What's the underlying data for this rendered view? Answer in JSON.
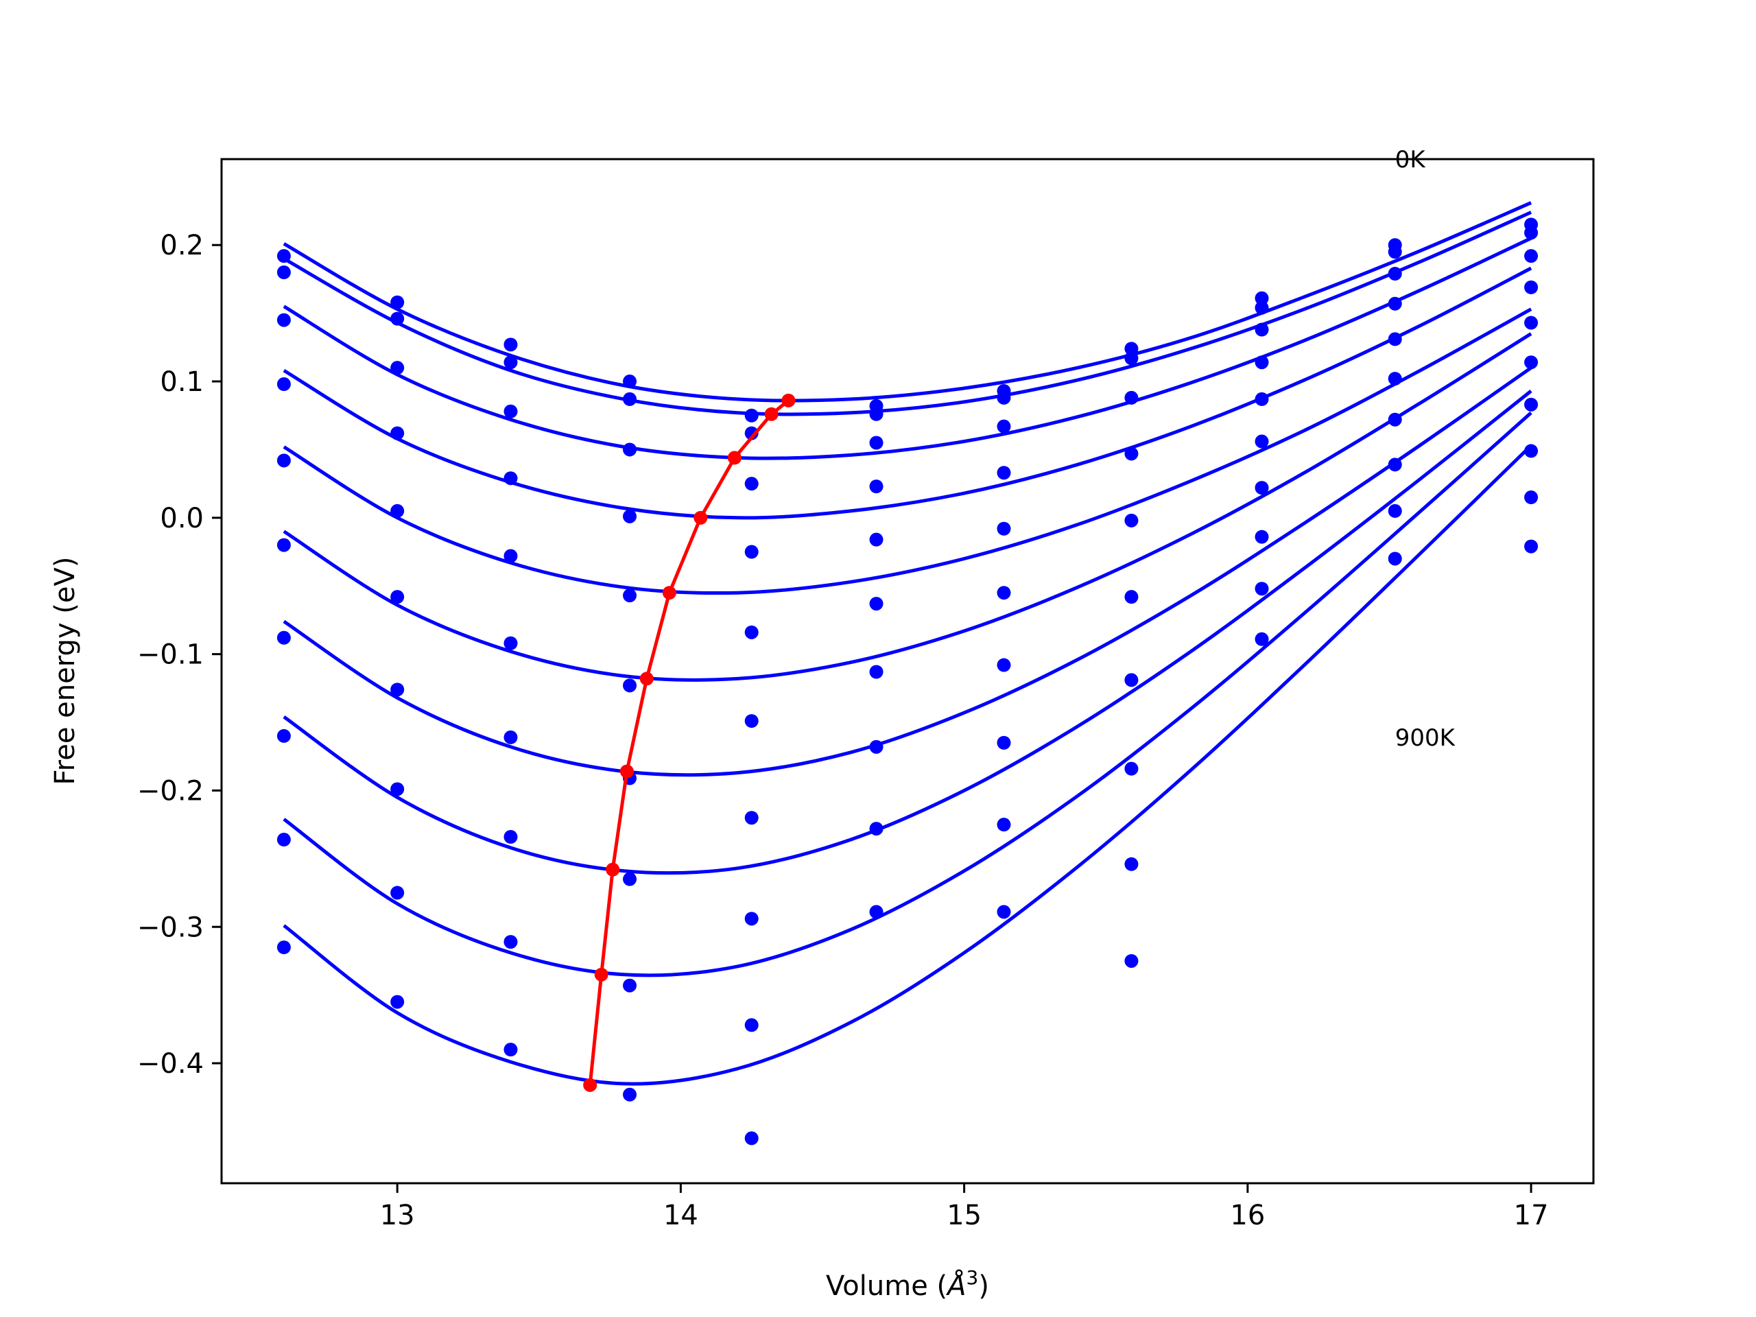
{
  "chart_data": {
    "type": "line",
    "title": "",
    "xlabel": "Volume (",
    "xlabel_unit": "Å",
    "xlabel_exp": "3",
    "xlabel_close": ")",
    "ylabel": "Free energy (eV)",
    "xlim": [
      12.38,
      17.22
    ],
    "ylim": [
      -0.488,
      0.263
    ],
    "xticks": [
      13,
      14,
      15,
      16,
      17
    ],
    "xtick_labels": [
      "13",
      "14",
      "15",
      "16",
      "17"
    ],
    "yticks": [
      0.2,
      0.1,
      0.0,
      -0.1,
      -0.2,
      -0.3,
      -0.4
    ],
    "ytick_labels": [
      "0.2",
      "0.1",
      "0.0",
      "−0.1",
      "−0.2",
      "−0.3",
      "−0.4"
    ],
    "grid": false,
    "annotations": [
      {
        "text": "0K",
        "x": 16.52,
        "y": 0.257
      },
      {
        "text": "900K",
        "x": 16.52,
        "y": -0.167
      }
    ],
    "colors": {
      "points": "#0000ff",
      "fits": "#0000ff",
      "minimum_path": "#ff0000"
    },
    "x_points": [
      12.6,
      13.0,
      13.4,
      13.82,
      14.25,
      14.69,
      15.14,
      15.59,
      16.05,
      16.52,
      17.0
    ],
    "series": [
      {
        "points": [
          0.192,
          0.158,
          0.127,
          0.1,
          0.075,
          0.082,
          0.093,
          0.124,
          0.161,
          0.2,
          0.215
        ],
        "fit": [
          [
            12.6,
            0.201
          ],
          [
            13.0,
            0.153
          ],
          [
            13.4,
            0.119
          ],
          [
            13.8,
            0.097
          ],
          [
            14.2,
            0.087
          ],
          [
            14.6,
            0.087
          ],
          [
            15.0,
            0.095
          ],
          [
            15.4,
            0.11
          ],
          [
            15.8,
            0.132
          ],
          [
            16.2,
            0.162
          ],
          [
            16.6,
            0.195
          ],
          [
            17.0,
            0.231
          ]
        ]
      },
      {
        "points": [
          0.18,
          0.146,
          0.114,
          0.087,
          0.062,
          0.076,
          0.088,
          0.117,
          0.154,
          0.195,
          0.209
        ],
        "fit": [
          [
            12.6,
            0.19
          ],
          [
            13.0,
            0.143
          ],
          [
            13.4,
            0.108
          ],
          [
            13.8,
            0.087
          ],
          [
            14.2,
            0.077
          ],
          [
            14.6,
            0.077
          ],
          [
            15.0,
            0.085
          ],
          [
            15.4,
            0.101
          ],
          [
            15.8,
            0.124
          ],
          [
            16.2,
            0.153
          ],
          [
            16.6,
            0.187
          ],
          [
            17.0,
            0.224
          ]
        ]
      },
      {
        "points": [
          0.145,
          0.11,
          0.078,
          0.05,
          0.025,
          0.055,
          0.067,
          0.088,
          0.138,
          0.179,
          0.192
        ],
        "fit": [
          [
            12.6,
            0.155
          ],
          [
            13.0,
            0.105
          ],
          [
            13.4,
            0.072
          ],
          [
            13.8,
            0.052
          ],
          [
            14.2,
            0.044
          ],
          [
            14.6,
            0.046
          ],
          [
            15.0,
            0.056
          ],
          [
            15.4,
            0.074
          ],
          [
            15.8,
            0.099
          ],
          [
            16.2,
            0.13
          ],
          [
            16.6,
            0.166
          ],
          [
            17.0,
            0.205
          ]
        ]
      },
      {
        "points": [
          0.098,
          0.062,
          0.029,
          0.001,
          -0.025,
          0.023,
          0.033,
          0.047,
          0.114,
          0.157,
          0.169
        ],
        "fit": [
          [
            12.6,
            0.108
          ],
          [
            13.0,
            0.058
          ],
          [
            13.4,
            0.026
          ],
          [
            13.8,
            0.007
          ],
          [
            14.2,
            0.0
          ],
          [
            14.6,
            0.005
          ],
          [
            15.0,
            0.018
          ],
          [
            15.4,
            0.039
          ],
          [
            15.8,
            0.067
          ],
          [
            16.2,
            0.101
          ],
          [
            16.6,
            0.14
          ],
          [
            17.0,
            0.183
          ]
        ]
      },
      {
        "points": [
          0.042,
          0.005,
          -0.028,
          -0.057,
          -0.084,
          -0.016,
          -0.008,
          -0.002,
          0.087,
          0.131,
          0.143
        ],
        "fit": [
          [
            12.6,
            0.052
          ],
          [
            13.0,
            0.0
          ],
          [
            13.4,
            -0.033
          ],
          [
            13.8,
            -0.051
          ],
          [
            14.2,
            -0.055
          ],
          [
            14.6,
            -0.047
          ],
          [
            15.0,
            -0.03
          ],
          [
            15.4,
            -0.005
          ],
          [
            15.8,
            0.027
          ],
          [
            16.2,
            0.064
          ],
          [
            16.6,
            0.107
          ],
          [
            17.0,
            0.153
          ]
        ]
      },
      {
        "points": [
          -0.02,
          -0.058,
          -0.092,
          -0.123,
          -0.149,
          -0.063,
          -0.055,
          -0.058,
          0.056,
          0.102,
          0.114
        ],
        "fit": [
          [
            12.6,
            -0.01
          ],
          [
            13.0,
            -0.064
          ],
          [
            13.4,
            -0.098
          ],
          [
            13.8,
            -0.116
          ],
          [
            14.2,
            -0.118
          ],
          [
            14.6,
            -0.106
          ],
          [
            15.0,
            -0.083
          ],
          [
            15.4,
            -0.051
          ],
          [
            15.8,
            -0.012
          ],
          [
            16.2,
            0.033
          ],
          [
            16.6,
            0.083
          ],
          [
            17.0,
            0.135
          ]
        ]
      },
      {
        "points": [
          -0.088,
          -0.126,
          -0.161,
          -0.191,
          -0.22,
          -0.113,
          -0.108,
          -0.119,
          0.022,
          0.072,
          0.083
        ],
        "fit": [
          [
            12.6,
            -0.076
          ],
          [
            13.0,
            -0.132
          ],
          [
            13.4,
            -0.168
          ],
          [
            13.8,
            -0.186
          ],
          [
            14.2,
            -0.187
          ],
          [
            14.6,
            -0.172
          ],
          [
            15.0,
            -0.143
          ],
          [
            15.4,
            -0.104
          ],
          [
            15.8,
            -0.057
          ],
          [
            16.2,
            -0.004
          ],
          [
            16.6,
            0.052
          ],
          [
            17.0,
            0.11
          ]
        ]
      },
      {
        "points": [
          -0.16,
          -0.199,
          -0.234,
          -0.265,
          -0.294,
          -0.168,
          -0.165,
          -0.184,
          -0.014,
          0.039,
          0.049
        ],
        "fit": [
          [
            12.6,
            -0.146
          ],
          [
            13.0,
            -0.205
          ],
          [
            13.4,
            -0.242
          ],
          [
            13.8,
            -0.259
          ],
          [
            14.2,
            -0.257
          ],
          [
            14.6,
            -0.236
          ],
          [
            15.0,
            -0.2
          ],
          [
            15.4,
            -0.153
          ],
          [
            15.8,
            -0.098
          ],
          [
            16.2,
            -0.037
          ],
          [
            16.6,
            0.027
          ],
          [
            17.0,
            0.093
          ]
        ]
      },
      {
        "points": [
          -0.236,
          -0.275,
          -0.311,
          -0.343,
          -0.372,
          -0.228,
          -0.225,
          -0.254,
          -0.052,
          0.005,
          0.015
        ],
        "fit": [
          [
            12.6,
            -0.221
          ],
          [
            13.0,
            -0.283
          ],
          [
            13.4,
            -0.319
          ],
          [
            13.8,
            -0.335
          ],
          [
            14.2,
            -0.329
          ],
          [
            14.6,
            -0.302
          ],
          [
            15.0,
            -0.259
          ],
          [
            15.4,
            -0.204
          ],
          [
            15.8,
            -0.14
          ],
          [
            16.2,
            -0.07
          ],
          [
            16.6,
            0.003
          ],
          [
            17.0,
            0.077
          ]
        ]
      },
      {
        "points": [
          -0.315,
          -0.355,
          -0.39,
          -0.423,
          -0.455,
          -0.289,
          -0.289,
          -0.325,
          -0.089,
          -0.03,
          -0.021
        ],
        "fit": [
          [
            12.6,
            -0.299
          ],
          [
            13.0,
            -0.363
          ],
          [
            13.4,
            -0.399
          ],
          [
            13.8,
            -0.415
          ],
          [
            14.2,
            -0.404
          ],
          [
            14.6,
            -0.37
          ],
          [
            15.0,
            -0.319
          ],
          [
            15.4,
            -0.256
          ],
          [
            15.8,
            -0.185
          ],
          [
            16.2,
            -0.108
          ],
          [
            16.6,
            -0.028
          ],
          [
            17.0,
            0.053
          ]
        ]
      }
    ],
    "minimum_path": {
      "x": [
        14.38,
        14.32,
        14.19,
        14.07,
        13.96,
        13.88,
        13.81,
        13.76,
        13.72,
        13.68
      ],
      "y": [
        0.086,
        0.076,
        0.044,
        0.0,
        -0.055,
        -0.118,
        -0.186,
        -0.258,
        -0.335,
        -0.416
      ]
    }
  }
}
